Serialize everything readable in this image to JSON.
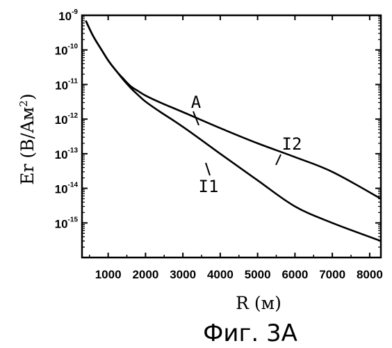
{
  "chart_data": {
    "type": "line",
    "xlabel": "R (м)",
    "ylabel_main": "Er (B/Aм",
    "ylabel_sup": "2",
    "ylabel_close": ")",
    "x_scale": "linear",
    "y_scale": "log",
    "xlim": [
      300,
      8300
    ],
    "ylim": [
      1e-16,
      1e-09
    ],
    "x_ticks": [
      1000,
      2000,
      3000,
      4000,
      5000,
      6000,
      7000,
      8000
    ],
    "x_tick_labels": [
      "1000",
      "2000",
      "3000",
      "4000",
      "5000",
      "6000",
      "7000",
      "8000"
    ],
    "y_ticks": [
      1e-09,
      1e-10,
      1e-11,
      1e-12,
      1e-13,
      1e-14,
      1e-15
    ],
    "y_tick_base": "10",
    "y_tick_exponents": [
      "-9",
      "-10",
      "-11",
      "-12",
      "-13",
      "-14",
      "-15"
    ],
    "grid": false,
    "series": [
      {
        "name": "I1",
        "x": [
          400,
          600,
          800,
          1000,
          1200,
          1400,
          1600,
          1800,
          2000,
          2400,
          3000,
          4000,
          5000,
          6000,
          7000,
          8300
        ],
        "y": [
          7e-10,
          2.5e-10,
          1.1e-10,
          5e-11,
          2.6e-11,
          1.4e-11,
          8e-12,
          5e-12,
          3.2e-12,
          1.6e-12,
          6e-13,
          1e-13,
          1.7e-14,
          3e-15,
          1e-15,
          3e-16
        ]
      },
      {
        "name": "I2",
        "x": [
          400,
          600,
          800,
          1000,
          1200,
          1400,
          1600,
          1800,
          2000,
          2400,
          3000,
          4000,
          5000,
          6000,
          7000,
          8300
        ],
        "y": [
          7e-10,
          2.5e-10,
          1.1e-10,
          5e-11,
          2.6e-11,
          1.5e-11,
          9e-12,
          6.5e-12,
          4.8e-12,
          3e-12,
          1.6e-12,
          5.5e-13,
          2e-13,
          8e-14,
          3e-14,
          5e-15
        ]
      }
    ],
    "annotations": [
      "A",
      "I1",
      "I2"
    ]
  },
  "caption": "Фиг. 3А"
}
